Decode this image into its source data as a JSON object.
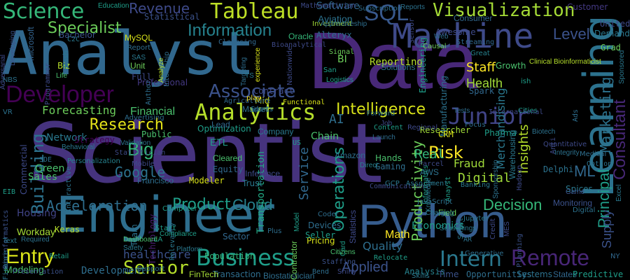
{
  "words": [
    {
      "text": "Scientist",
      "color": "#46337e"
    },
    {
      "text": "Data",
      "color": "#482878"
    },
    {
      "text": "Analyst",
      "color": "#31688e"
    },
    {
      "text": "Engineer",
      "color": "#2e6e8e"
    },
    {
      "text": "Python",
      "color": "#365c8d"
    },
    {
      "text": "Machine",
      "color": "#3e4a89"
    },
    {
      "text": "Learning",
      "color": "#2c728e"
    },
    {
      "text": "Developer",
      "color": "#440154"
    },
    {
      "text": "Analytics",
      "color": "#b5de2b"
    },
    {
      "text": "Business",
      "color": "#1f9e89"
    },
    {
      "text": "Remote",
      "color": "#482677"
    },
    {
      "text": "Tableau",
      "color": "#bddf26"
    },
    {
      "text": "Science",
      "color": "#35b779"
    },
    {
      "text": "SQL",
      "color": "#38588c"
    },
    {
      "text": "Visualization",
      "color": "#a5db36"
    },
    {
      "text": "Associate",
      "color": "#3b528b"
    },
    {
      "text": "Information",
      "color": "#26828e"
    },
    {
      "text": "Junior",
      "color": "#414487"
    },
    {
      "text": "Intern",
      "color": "#2a788e"
    },
    {
      "text": "Entry",
      "color": "#d8e219"
    },
    {
      "text": "Senior",
      "color": "#b5de2b"
    },
    {
      "text": "Specialist",
      "color": "#6ccd5a"
    },
    {
      "text": "Level",
      "color": "#3b528b"
    },
    {
      "text": "Research",
      "color": "#e5e419"
    },
    {
      "text": "Operations",
      "color": "#1f9e89"
    },
    {
      "text": "Consultant",
      "color": "#482878"
    },
    {
      "text": "Marketing",
      "color": "#2c728e"
    },
    {
      "text": "Intelligence",
      "color": "#d8e219"
    },
    {
      "text": "Decision",
      "color": "#35b779"
    },
    {
      "text": "Building",
      "color": "#2c728e"
    },
    {
      "text": "Revenue",
      "color": "#3e4a89"
    },
    {
      "text": "Big",
      "color": "#35b779"
    },
    {
      "text": "Productivity",
      "color": "#6ccd5a"
    },
    {
      "text": "Risk",
      "color": "#fde725"
    },
    {
      "text": "Principal",
      "color": "#1f9e89"
    },
    {
      "text": "Acceleration",
      "color": "#2e6e8e"
    },
    {
      "text": "Product",
      "color": "#1f9e89"
    },
    {
      "text": "Cloud",
      "color": "#26828e"
    },
    {
      "text": "Google",
      "color": "#2c728e"
    },
    {
      "text": "Staff",
      "color": "#fde725"
    },
    {
      "text": "Applied",
      "color": "#3b528b"
    },
    {
      "text": "Digital",
      "color": "#a0da39"
    },
    {
      "text": "Insights",
      "color": "#b5de2b"
    },
    {
      "text": "Health",
      "color": "#a0da39"
    },
    {
      "text": "Service",
      "color": "#31688e"
    },
    {
      "text": "Fraud",
      "color": "#a0da39"
    },
    {
      "text": "ML",
      "color": "#31688e"
    },
    {
      "text": "Real",
      "color": "#35b779"
    },
    {
      "text": "Merchandising",
      "color": "#2a788e"
    },
    {
      "text": "Supply",
      "color": "#3b528b"
    },
    {
      "text": "Forecasting",
      "color": "#6ccd5a"
    },
    {
      "text": "Network",
      "color": "#2a788e"
    },
    {
      "text": "Financial",
      "color": "#4ac16d"
    },
    {
      "text": "Transportation",
      "color": "#22a884"
    },
    {
      "text": "Quality",
      "color": "#2e6e8e"
    },
    {
      "text": "Math",
      "color": "#fde725"
    },
    {
      "text": "Sales",
      "color": "#4ac16d"
    },
    {
      "text": "Green",
      "color": "#4ac16d"
    },
    {
      "text": "Modeling",
      "color": "#4ac16d"
    },
    {
      "text": "Development",
      "color": "#2e6e8e"
    },
    {
      "text": "Housing",
      "color": "#414487"
    },
    {
      "text": "Workday",
      "color": "#a5db36"
    },
    {
      "text": "healthcare",
      "color": "#3b528b"
    },
    {
      "text": "Software",
      "color": "#31688e"
    },
    {
      "text": "Aviation",
      "color": "#2c728e"
    },
    {
      "text": "Reporting",
      "color": "#b5de2b"
    },
    {
      "text": "Economics",
      "color": "#1f9e89"
    },
    {
      "text": "Monitoring",
      "color": "#3b528b"
    },
    {
      "text": "Analysis",
      "color": "#26828e"
    },
    {
      "text": "Chain",
      "color": "#4ac16d"
    },
    {
      "text": "ETL",
      "color": "#1f9e89"
    },
    {
      "text": "AI",
      "color": "#2e6e8e"
    },
    {
      "text": "BI",
      "color": "#6ccd5a"
    },
    {
      "text": "MySQL",
      "color": "#d8e219"
    },
    {
      "text": "Statistical",
      "color": "#3b528b"
    },
    {
      "text": "Bachelor",
      "color": "#3b528b"
    },
    {
      "text": "Oracle",
      "color": "#35b779"
    },
    {
      "text": "Alteryx",
      "color": "#2e6e8e"
    },
    {
      "text": "Investment",
      "color": "#a0da39"
    },
    {
      "text": "Solutions",
      "color": "#2c728e"
    },
    {
      "text": "Strategy",
      "color": "#440154"
    },
    {
      "text": "Professional",
      "color": "#443983"
    },
    {
      "text": "Cleared",
      "color": "#4ac16d"
    },
    {
      "text": "Equity",
      "color": "#31688e"
    },
    {
      "text": "Trust",
      "color": "#2a788e"
    },
    {
      "text": "Inference",
      "color": "#3e4a89"
    },
    {
      "text": "Modeler",
      "color": "#d8e219"
    },
    {
      "text": "Pricing",
      "color": "#d8e219"
    },
    {
      "text": "Francisco",
      "color": "#2e6e8e"
    },
    {
      "text": "Technology",
      "color": "#481f70"
    },
    {
      "text": "Transaction",
      "color": "#2e6e8e"
    },
    {
      "text": "Biostatistician",
      "color": "#2e6e8e"
    },
    {
      "text": "Opportunities",
      "color": "#2e6e8e"
    },
    {
      "text": "Systems",
      "color": "#2c728e"
    },
    {
      "text": "States",
      "color": "#31688e"
    },
    {
      "text": "Predictive",
      "color": "#1f9e89"
    },
    {
      "text": "Time",
      "color": "#3b528b"
    },
    {
      "text": "FinTech",
      "color": "#a5db36"
    },
    {
      "text": "Population",
      "color": "#35b779"
    },
    {
      "text": "Sector",
      "color": "#31688e"
    },
    {
      "text": "Contractor",
      "color": "#6ccd5a"
    },
    {
      "text": "Researcher",
      "color": "#a0da39"
    },
    {
      "text": "Customer",
      "color": "#443983"
    },
    {
      "text": "Consumer",
      "color": "#31688e"
    },
    {
      "text": "Public",
      "color": "#4ac16d"
    },
    {
      "text": "Optimization",
      "color": "#1f9e89"
    },
    {
      "text": "Company",
      "color": "#2a788e"
    },
    {
      "text": "Engineering",
      "color": "#1f9e89"
    },
    {
      "text": "Manufacturing",
      "color": "#2c728e"
    },
    {
      "text": "Microsoft",
      "color": "#33638d"
    },
    {
      "text": "Bioinformatics",
      "color": "#3b528b"
    },
    {
      "text": "Commercial",
      "color": "#3e4a89"
    },
    {
      "text": "Adversarial",
      "color": "#3e4a89"
    },
    {
      "text": "Spark",
      "color": "#31688e"
    },
    {
      "text": "Awesome",
      "color": "#3e4a89"
    },
    {
      "text": "Statistics",
      "color": "#3e4a89"
    },
    {
      "text": "Seller",
      "color": "#1f9e89"
    },
    {
      "text": "Devices",
      "color": "#2e6e8e"
    },
    {
      "text": "Amazon",
      "color": "#2e6e8e"
    },
    {
      "text": "Gaming",
      "color": "#2e6e8e"
    },
    {
      "text": "Hands",
      "color": "#4ac16d"
    },
    {
      "text": "AWS",
      "color": "#2c728e"
    },
    {
      "text": "CRM",
      "color": "#d8e219"
    },
    {
      "text": "Pharma",
      "color": "#1f9e89"
    },
    {
      "text": "Warehousing",
      "color": "#2a788e"
    },
    {
      "text": "Delphi",
      "color": "#2c728e"
    },
    {
      "text": "Spices",
      "color": "#2a788e"
    },
    {
      "text": "Excel",
      "color": "#2a788e"
    },
    {
      "text": "Grad",
      "color": "#6ccd5a"
    },
    {
      "text": "Demand",
      "color": "#2a788e"
    },
    {
      "text": "Sponsored",
      "color": "#2a788e"
    },
    {
      "text": "United",
      "color": "#3e4a89"
    },
    {
      "text": "Growth",
      "color": "#4ac16d"
    },
    {
      "text": "Unit",
      "color": "#6ccd5a"
    },
    {
      "text": "Full",
      "color": "#3e4a89"
    },
    {
      "text": "Mid",
      "color": "#d8e219"
    },
    {
      "text": "Market",
      "color": "#2e6e8e"
    },
    {
      "text": "Contract",
      "color": "#3e4a89"
    },
    {
      "text": "Biz",
      "color": "#b5de2b"
    },
    {
      "text": "Life",
      "color": "#4ac16d"
    },
    {
      "text": "Keras",
      "color": "#b5de2b"
    },
    {
      "text": "Team",
      "color": "#2c728e"
    },
    {
      "text": "Lead",
      "color": "#31688e"
    },
    {
      "text": "Bend",
      "color": "#2e6e8e"
    },
    {
      "text": "Plus",
      "color": "#2e6e8e"
    },
    {
      "text": "Game",
      "color": "#3b528b"
    },
    {
      "text": "Option",
      "color": "#2c728e"
    },
    {
      "text": "Generative",
      "color": "#2e6e8e"
    },
    {
      "text": "Field",
      "color": "#6ccd5a"
    },
    {
      "text": "Anti",
      "color": "#3e4a89"
    },
    {
      "text": "Retail",
      "color": "#1f9e89"
    },
    {
      "text": "Required",
      "color": "#2c728e"
    },
    {
      "text": "Presentation",
      "color": "#3b528b"
    },
    {
      "text": "Cities",
      "color": "#1f9e89"
    },
    {
      "text": "Tests",
      "color": "#2e6e8e"
    },
    {
      "text": "Focus",
      "color": "#2e6e8e"
    },
    {
      "text": "Digital",
      "color": "#2c728e"
    },
    {
      "text": "Dashboard",
      "color": "#4ac16d"
    },
    {
      "text": "Staffing",
      "color": "#3b528b"
    },
    {
      "text": "Skills",
      "color": "#2a788e"
    },
    {
      "text": "Citizens",
      "color": "#4ac16d"
    },
    {
      "text": "Relocate",
      "color": "#1f9e89"
    },
    {
      "text": "Shiny",
      "color": "#3e4a89"
    },
    {
      "text": "Card",
      "color": "#1f9e89"
    },
    {
      "text": "Communications",
      "color": "#3e4a89"
    },
    {
      "text": "GCP",
      "color": "#2a788e"
    },
    {
      "text": "Direct",
      "color": "#26828e"
    },
    {
      "text": "Parcel",
      "color": "#3e4a89"
    },
    {
      "text": "Regional",
      "color": "#3e4a89"
    },
    {
      "text": "Launch",
      "color": "#2e6e8e"
    },
    {
      "text": "Content",
      "color": "#1f9e89"
    },
    {
      "text": "Forward",
      "color": "#2c728e"
    },
    {
      "text": "Reports",
      "color": "#2c728e"
    },
    {
      "text": "Sensor",
      "color": "#3e4a89"
    },
    {
      "text": "Causal",
      "color": "#6ccd5a"
    },
    {
      "text": "Web",
      "color": "#2e6e8e"
    },
    {
      "text": "Streaming",
      "color": "#31688e"
    },
    {
      "text": "Great",
      "color": "#26828e"
    },
    {
      "text": "Clinical Bioinformaticist",
      "color": "#b5de2b"
    },
    {
      "text": "Signal",
      "color": "#6ccd5a"
    },
    {
      "text": "San",
      "color": "#1f9e89"
    },
    {
      "text": "Logistics",
      "color": "#1f9e89"
    },
    {
      "text": "Functional",
      "color": "#d8e219"
    },
    {
      "text": "play",
      "color": "#fde725"
    },
    {
      "text": "experience",
      "color": "#d8e219"
    },
    {
      "text": "Bioanalytical",
      "color": "#3e4a89"
    },
    {
      "text": "Nationwide",
      "color": "#3e4a89"
    },
    {
      "text": "Analyze",
      "color": "#b5de2b"
    },
    {
      "text": "Author",
      "color": "#2e6e8e"
    },
    {
      "text": "Internship",
      "color": "#2e6e8e"
    },
    {
      "text": "Targeting",
      "color": "#2e6e8e"
    },
    {
      "text": "Cleansing",
      "color": "#31688e"
    },
    {
      "text": "Report",
      "color": "#2e6e8e"
    },
    {
      "text": "SAS",
      "color": "#2a788e"
    },
    {
      "text": "C2C",
      "color": "#2a788e"
    },
    {
      "text": "Bash",
      "color": "#2a788e"
    },
    {
      "text": "Apprenticeship",
      "color": "#2e6e8e"
    },
    {
      "text": "Mathematician",
      "color": "#3e4a89"
    },
    {
      "text": "Subscription",
      "color": "#2e6e8e"
    },
    {
      "text": "Education",
      "color": "#1f9e89"
    },
    {
      "text": "Agriculture",
      "color": "#31688e"
    },
    {
      "text": "Sports",
      "color": "#2c728e"
    },
    {
      "text": "Platform",
      "color": "#2a788e"
    },
    {
      "text": "Relevancy",
      "color": "#2a788e"
    },
    {
      "text": "Computer",
      "color": "#1f9e89"
    },
    {
      "text": "Compliance",
      "color": "#1f9e89"
    },
    {
      "text": "Start",
      "color": "#1f9e89"
    },
    {
      "text": "Coder",
      "color": "#2e6e8e"
    },
    {
      "text": "Model",
      "color": "#1f9e89"
    },
    {
      "text": "Banking",
      "color": "#2a788e"
    },
    {
      "text": "Jupyter",
      "color": "#2a788e"
    },
    {
      "text": "Sponsorship",
      "color": "#2c728e"
    },
    {
      "text": "Hadoop",
      "color": "#3e4a89"
    },
    {
      "text": "Quantitative",
      "color": "#3e4a89"
    },
    {
      "text": "Integrity",
      "color": "#2c728e"
    },
    {
      "text": "International",
      "color": "#3e4a89"
    },
    {
      "text": "Medical",
      "color": "#2e6e8e"
    },
    {
      "text": "Biotech",
      "color": "#2c728e"
    },
    {
      "text": "Ads",
      "color": "#2e6e8e"
    },
    {
      "text": "Credit",
      "color": "#3e4a89"
    },
    {
      "text": "MES",
      "color": "#3e4a89"
    },
    {
      "text": "Planning",
      "color": "#3b528b"
    },
    {
      "text": "Smart",
      "color": "#2a788e"
    },
    {
      "text": "Seasonings",
      "color": "#2a788e"
    },
    {
      "text": "Assortment",
      "color": "#2a788e"
    },
    {
      "text": "Informatics",
      "color": "#1f9e89"
    },
    {
      "text": "Knowledge",
      "color": "#2a788e"
    },
    {
      "text": "Anayst",
      "color": "#1f9e89"
    },
    {
      "text": "JavaScript",
      "color": "#2c728e"
    },
    {
      "text": "Charging",
      "color": "#2a788e"
    },
    {
      "text": "SDE",
      "color": "#2c728e"
    },
    {
      "text": "Personalization",
      "color": "#26828e"
    },
    {
      "text": "Behavioral",
      "color": "#2a788e"
    },
    {
      "text": "Interactive",
      "color": "#2c728e"
    },
    {
      "text": "Advertising",
      "color": "#2e6e8e"
    },
    {
      "text": "Validation",
      "color": "#2c728e"
    },
    {
      "text": "Statistician",
      "color": "#3e4a89"
    },
    {
      "text": "Mobile",
      "color": "#3e4a89"
    },
    {
      "text": "Developing",
      "color": "#3b528b"
    },
    {
      "text": "Programmer",
      "color": "#3e4a89"
    },
    {
      "text": "Support",
      "color": "#2c728e"
    },
    {
      "text": "Safety",
      "color": "#2a788e"
    },
    {
      "text": "Finance",
      "color": "#2c728e"
    },
    {
      "text": "Text",
      "color": "#2a788e"
    },
    {
      "text": "NBS",
      "color": "#2c728e"
    },
    {
      "text": "EIB",
      "color": "#1f9e89"
    },
    {
      "text": "VR",
      "color": "#2c728e"
    },
    {
      "text": "LA",
      "color": "#1f9e89"
    },
    {
      "text": "AR",
      "color": "#2c728e"
    },
    {
      "text": "NY",
      "color": "#31688e"
    },
    {
      "text": "TS",
      "color": "#2a788e"
    },
    {
      "text": "US",
      "color": "#1f9e89"
    },
    {
      "text": "ish",
      "color": "#1f9e89"
    },
    {
      "text": "Job",
      "color": "#3e4a89"
    }
  ]
}
